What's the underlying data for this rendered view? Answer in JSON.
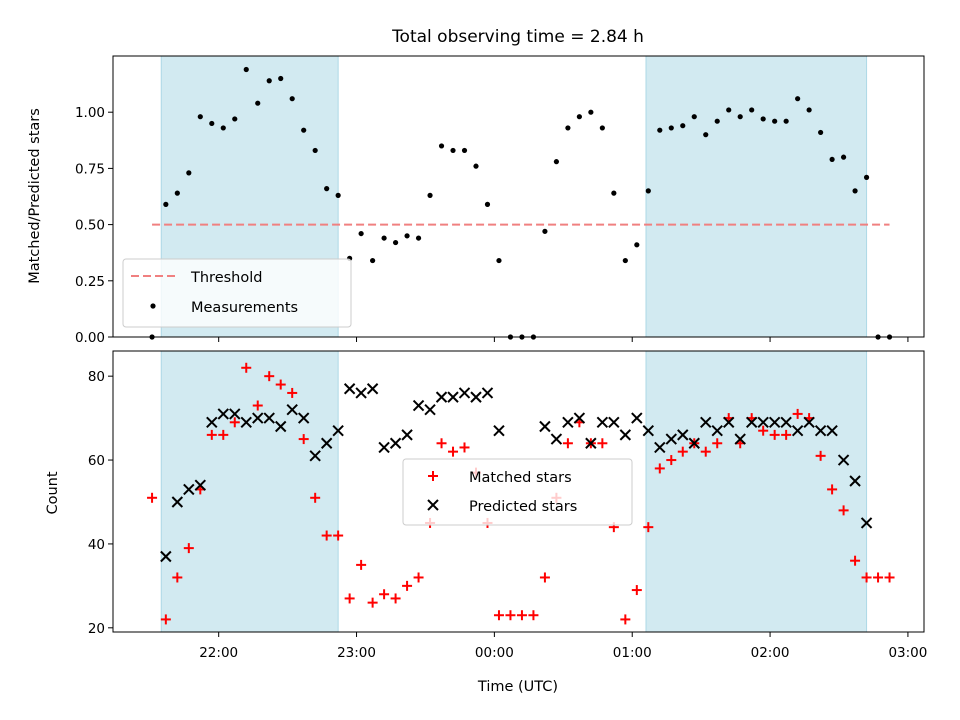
{
  "title": "Total observing time = 2.84 h",
  "xlabel": "Time (UTC)",
  "x_ticks": [
    "22:00",
    "23:00",
    "00:00",
    "01:00",
    "02:00",
    "03:00"
  ],
  "colors": {
    "shade": "#add8e6",
    "threshold": "#f08080",
    "measurements": "#000000",
    "matched": "#ff0000",
    "predicted": "#000000"
  },
  "chart_data": [
    {
      "type": "scatter",
      "title": "Total observing time = 2.84 h",
      "xlabel": "",
      "ylabel": "Matched/Predicted stars",
      "ylim": [
        0,
        1.25
      ],
      "y_ticks": [
        "0.00",
        "0.25",
        "0.50",
        "0.75",
        "1.00"
      ],
      "shaded_spans": [
        [
          "21:35",
          "22:52"
        ],
        [
          "01:06",
          "02:42"
        ]
      ],
      "threshold": {
        "name": "Threshold",
        "value": 0.5,
        "x": [
          "21:31",
          "02:52"
        ]
      },
      "legend": {
        "placement": "lower left",
        "entries": [
          "Threshold",
          "Measurements"
        ]
      },
      "series": [
        {
          "name": "Measurements",
          "points": [
            [
              "21:31",
              0.0
            ],
            [
              "21:37",
              0.59
            ],
            [
              "21:42",
              0.64
            ],
            [
              "21:47",
              0.73
            ],
            [
              "21:52",
              0.98
            ],
            [
              "21:57",
              0.95
            ],
            [
              "22:02",
              0.93
            ],
            [
              "22:07",
              0.97
            ],
            [
              "22:12",
              1.19
            ],
            [
              "22:17",
              1.04
            ],
            [
              "22:22",
              1.14
            ],
            [
              "22:27",
              1.15
            ],
            [
              "22:32",
              1.06
            ],
            [
              "22:37",
              0.92
            ],
            [
              "22:42",
              0.83
            ],
            [
              "22:47",
              0.66
            ],
            [
              "22:52",
              0.63
            ],
            [
              "22:57",
              0.35
            ],
            [
              "23:02",
              0.46
            ],
            [
              "23:07",
              0.34
            ],
            [
              "23:12",
              0.44
            ],
            [
              "23:17",
              0.42
            ],
            [
              "23:22",
              0.45
            ],
            [
              "23:27",
              0.44
            ],
            [
              "23:32",
              0.63
            ],
            [
              "23:37",
              0.85
            ],
            [
              "23:42",
              0.83
            ],
            [
              "23:47",
              0.83
            ],
            [
              "23:52",
              0.76
            ],
            [
              "23:57",
              0.59
            ],
            [
              "00:02",
              0.34
            ],
            [
              "00:07",
              0.0
            ],
            [
              "00:12",
              0.0
            ],
            [
              "00:17",
              0.0
            ],
            [
              "00:22",
              0.47
            ],
            [
              "00:27",
              0.78
            ],
            [
              "00:32",
              0.93
            ],
            [
              "00:37",
              0.98
            ],
            [
              "00:42",
              1.0
            ],
            [
              "00:47",
              0.93
            ],
            [
              "00:52",
              0.64
            ],
            [
              "00:57",
              0.34
            ],
            [
              "01:02",
              0.41
            ],
            [
              "01:07",
              0.65
            ],
            [
              "01:12",
              0.92
            ],
            [
              "01:17",
              0.93
            ],
            [
              "01:22",
              0.94
            ],
            [
              "01:27",
              0.98
            ],
            [
              "01:32",
              0.9
            ],
            [
              "01:37",
              0.96
            ],
            [
              "01:42",
              1.01
            ],
            [
              "01:47",
              0.98
            ],
            [
              "01:52",
              1.01
            ],
            [
              "01:57",
              0.97
            ],
            [
              "02:02",
              0.96
            ],
            [
              "02:07",
              0.96
            ],
            [
              "02:12",
              1.06
            ],
            [
              "02:17",
              1.01
            ],
            [
              "02:22",
              0.91
            ],
            [
              "02:27",
              0.79
            ],
            [
              "02:32",
              0.8
            ],
            [
              "02:37",
              0.65
            ],
            [
              "02:42",
              0.71
            ],
            [
              "02:47",
              0.0
            ],
            [
              "02:52",
              0.0
            ]
          ]
        }
      ]
    },
    {
      "type": "scatter",
      "xlabel": "Time (UTC)",
      "ylabel": "Count",
      "ylim": [
        19,
        86
      ],
      "y_ticks": [
        "20",
        "40",
        "60",
        "80"
      ],
      "shaded_spans": [
        [
          "21:35",
          "22:52"
        ],
        [
          "01:06",
          "02:42"
        ]
      ],
      "legend": {
        "placement": "center",
        "entries": [
          "Matched stars",
          "Predicted stars"
        ]
      },
      "series": [
        {
          "name": "Matched stars",
          "points": [
            [
              "21:31",
              51
            ],
            [
              "21:37",
              22
            ],
            [
              "21:42",
              32
            ],
            [
              "21:47",
              39
            ],
            [
              "21:52",
              53
            ],
            [
              "21:57",
              66
            ],
            [
              "22:02",
              66
            ],
            [
              "22:07",
              69
            ],
            [
              "22:12",
              82
            ],
            [
              "22:17",
              73
            ],
            [
              "22:22",
              80
            ],
            [
              "22:27",
              78
            ],
            [
              "22:32",
              76
            ],
            [
              "22:37",
              65
            ],
            [
              "22:42",
              51
            ],
            [
              "22:47",
              42
            ],
            [
              "22:52",
              42
            ],
            [
              "22:57",
              27
            ],
            [
              "23:02",
              35
            ],
            [
              "23:07",
              26
            ],
            [
              "23:12",
              28
            ],
            [
              "23:17",
              27
            ],
            [
              "23:22",
              30
            ],
            [
              "23:27",
              32
            ],
            [
              "23:32",
              45
            ],
            [
              "23:37",
              64
            ],
            [
              "23:42",
              62
            ],
            [
              "23:47",
              63
            ],
            [
              "23:52",
              57
            ],
            [
              "23:57",
              45
            ],
            [
              "00:02",
              23
            ],
            [
              "00:07",
              23
            ],
            [
              "00:12",
              23
            ],
            [
              "00:17",
              23
            ],
            [
              "00:22",
              32
            ],
            [
              "00:27",
              51
            ],
            [
              "00:32",
              64
            ],
            [
              "00:37",
              69
            ],
            [
              "00:42",
              64
            ],
            [
              "00:47",
              64
            ],
            [
              "00:52",
              44
            ],
            [
              "00:57",
              22
            ],
            [
              "01:02",
              29
            ],
            [
              "01:07",
              44
            ],
            [
              "01:12",
              58
            ],
            [
              "01:17",
              60
            ],
            [
              "01:22",
              62
            ],
            [
              "01:27",
              64
            ],
            [
              "01:32",
              62
            ],
            [
              "01:37",
              64
            ],
            [
              "01:42",
              70
            ],
            [
              "01:47",
              64
            ],
            [
              "01:52",
              70
            ],
            [
              "01:57",
              67
            ],
            [
              "02:02",
              66
            ],
            [
              "02:07",
              66
            ],
            [
              "02:12",
              71
            ],
            [
              "02:17",
              70
            ],
            [
              "02:22",
              61
            ],
            [
              "02:27",
              53
            ],
            [
              "02:32",
              48
            ],
            [
              "02:37",
              36
            ],
            [
              "02:42",
              32
            ],
            [
              "02:47",
              32
            ],
            [
              "02:52",
              32
            ]
          ]
        },
        {
          "name": "Predicted stars",
          "points": [
            [
              "21:37",
              37
            ],
            [
              "21:42",
              50
            ],
            [
              "21:47",
              53
            ],
            [
              "21:52",
              54
            ],
            [
              "21:57",
              69
            ],
            [
              "22:02",
              71
            ],
            [
              "22:07",
              71
            ],
            [
              "22:12",
              69
            ],
            [
              "22:17",
              70
            ],
            [
              "22:22",
              70
            ],
            [
              "22:27",
              68
            ],
            [
              "22:32",
              72
            ],
            [
              "22:37",
              70
            ],
            [
              "22:42",
              61
            ],
            [
              "22:47",
              64
            ],
            [
              "22:52",
              67
            ],
            [
              "22:57",
              77
            ],
            [
              "23:02",
              76
            ],
            [
              "23:07",
              77
            ],
            [
              "23:12",
              63
            ],
            [
              "23:17",
              64
            ],
            [
              "23:22",
              66
            ],
            [
              "23:27",
              73
            ],
            [
              "23:32",
              72
            ],
            [
              "23:37",
              75
            ],
            [
              "23:42",
              75
            ],
            [
              "23:47",
              76
            ],
            [
              "23:52",
              75
            ],
            [
              "23:57",
              76
            ],
            [
              "00:02",
              67
            ],
            [
              "00:22",
              68
            ],
            [
              "00:27",
              65
            ],
            [
              "00:32",
              69
            ],
            [
              "00:37",
              70
            ],
            [
              "00:42",
              64
            ],
            [
              "00:47",
              69
            ],
            [
              "00:52",
              69
            ],
            [
              "00:57",
              66
            ],
            [
              "01:02",
              70
            ],
            [
              "01:07",
              67
            ],
            [
              "01:12",
              63
            ],
            [
              "01:17",
              65
            ],
            [
              "01:22",
              66
            ],
            [
              "01:27",
              64
            ],
            [
              "01:32",
              69
            ],
            [
              "01:37",
              67
            ],
            [
              "01:42",
              69
            ],
            [
              "01:47",
              65
            ],
            [
              "01:52",
              69
            ],
            [
              "01:57",
              69
            ],
            [
              "02:02",
              69
            ],
            [
              "02:07",
              69
            ],
            [
              "02:12",
              67
            ],
            [
              "02:17",
              69
            ],
            [
              "02:22",
              67
            ],
            [
              "02:27",
              67
            ],
            [
              "02:32",
              60
            ],
            [
              "02:37",
              55
            ],
            [
              "02:42",
              45
            ]
          ]
        }
      ]
    }
  ]
}
